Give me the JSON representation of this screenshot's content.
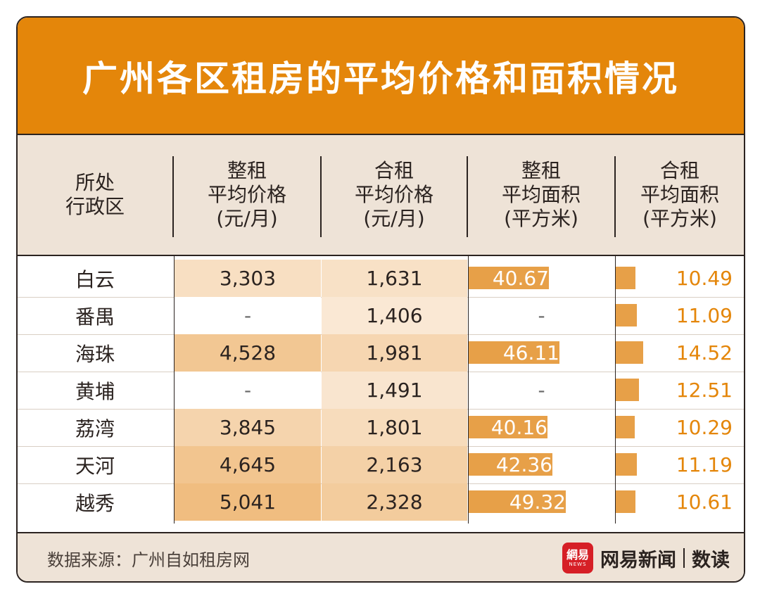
{
  "title": "广州各区租房的平均价格和面积情况",
  "headers": [
    "所处\n行政区",
    "整租\n平均价格\n(元/月)",
    "合租\n平均价格\n(元/月)",
    "整租\n平均面积\n(平方米)",
    "合租\n平均面积\n(平方米)"
  ],
  "rows": [
    {
      "district": "白云",
      "whole_price": "3,303",
      "shared_price": "1,631",
      "whole_area": "40.67",
      "shared_area": "10.49"
    },
    {
      "district": "番禺",
      "whole_price": "-",
      "shared_price": "1,406",
      "whole_area": "-",
      "shared_area": "11.09"
    },
    {
      "district": "海珠",
      "whole_price": "4,528",
      "shared_price": "1,981",
      "whole_area": "46.11",
      "shared_area": "14.52"
    },
    {
      "district": "黄埔",
      "whole_price": "-",
      "shared_price": "1,491",
      "whole_area": "-",
      "shared_area": "12.51"
    },
    {
      "district": "荔湾",
      "whole_price": "3,845",
      "shared_price": "1,801",
      "whole_area": "40.16",
      "shared_area": "10.29"
    },
    {
      "district": "天河",
      "whole_price": "4,645",
      "shared_price": "2,163",
      "whole_area": "42.36",
      "shared_area": "11.19"
    },
    {
      "district": "越秀",
      "whole_price": "5,041",
      "shared_price": "2,328",
      "whole_area": "49.32",
      "shared_area": "10.61"
    }
  ],
  "colors": {
    "title_bg": "#e4860a",
    "header_bg": "#eee3d7",
    "bar": "#e7a048",
    "accent_text": "#e4860a",
    "heat_low": "#fbeee0",
    "heat_high": "#f0bd80"
  },
  "footer": {
    "source": "数据来源：广州自如租房网",
    "logo_text": "網易",
    "logo_sub": "NEWS",
    "brand_name": "网易新闻",
    "brand_sub": "数读"
  },
  "chart_data": {
    "type": "table",
    "title": "广州各区租房的平均价格和面积情况",
    "columns": [
      "所处行政区",
      "整租平均价格(元/月)",
      "合租平均价格(元/月)",
      "整租平均面积(平方米)",
      "合租平均面积(平方米)"
    ],
    "categories": [
      "白云",
      "番禺",
      "海珠",
      "黄埔",
      "荔湾",
      "天河",
      "越秀"
    ],
    "series": [
      {
        "name": "整租平均价格(元/月)",
        "values": [
          3303,
          null,
          4528,
          null,
          3845,
          4645,
          5041
        ]
      },
      {
        "name": "合租平均价格(元/月)",
        "values": [
          1631,
          1406,
          1981,
          1491,
          1801,
          2163,
          2328
        ]
      },
      {
        "name": "整租平均面积(平方米)",
        "values": [
          40.67,
          null,
          46.11,
          null,
          40.16,
          42.36,
          49.32
        ]
      },
      {
        "name": "合租平均面积(平方米)",
        "values": [
          10.49,
          11.09,
          14.52,
          12.51,
          10.29,
          11.19,
          10.61
        ]
      }
    ]
  }
}
